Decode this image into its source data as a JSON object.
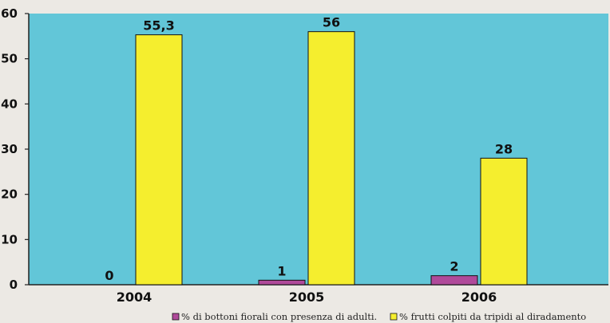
{
  "chart_data": {
    "type": "bar",
    "categories": [
      "2004",
      "2005",
      "2006"
    ],
    "series": [
      {
        "name": "% di bottoni fiorali con presenza di adulti.",
        "values": [
          0,
          1,
          2
        ],
        "value_labels": [
          "0",
          "1",
          "2"
        ],
        "color": "#b04a9a"
      },
      {
        "name": "% frutti colpiti da tripidi al diradamento",
        "values": [
          55.3,
          56,
          28
        ],
        "value_labels": [
          "55,3",
          "56",
          "28"
        ],
        "color": "#f5ee2e"
      }
    ],
    "y_ticks": [
      "0",
      "10",
      "20",
      "30",
      "40",
      "50",
      "60"
    ],
    "ylim": [
      0,
      60
    ],
    "title": "",
    "xlabel": "",
    "ylabel": "",
    "grid": false,
    "legend_position": "bottom",
    "plot_background": "#62c6d8",
    "page_background": "#ece9e4"
  }
}
